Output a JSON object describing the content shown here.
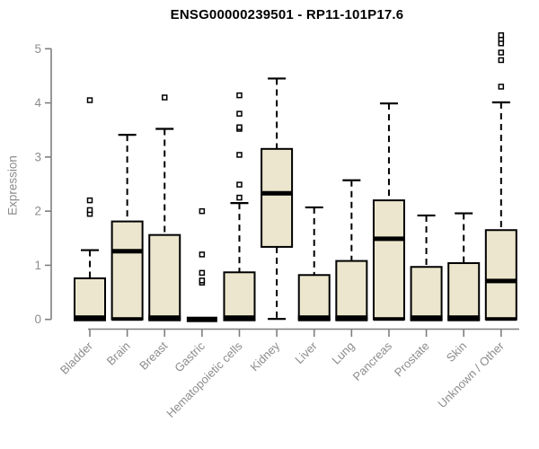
{
  "chart_data": {
    "type": "boxplot",
    "title": "ENSG00000239501 - RP11-101P17.6",
    "ylabel": "Expression",
    "xlabel": "",
    "ylim": [
      0,
      5.3
    ],
    "yticks": [
      0,
      1,
      2,
      3,
      4,
      5
    ],
    "grid": false,
    "legend": "none",
    "categories": [
      "Bladder",
      "Brain",
      "Breast",
      "Gastric",
      "Hematopoietic cells",
      "Kidney",
      "Liver",
      "Lung",
      "Pancreas",
      "Prostate",
      "Skin",
      "Unknown / Other"
    ],
    "boxes": [
      {
        "category": "Bladder",
        "q1": 0,
        "median": 0,
        "q3": 0.76,
        "whisker_low": 0,
        "whisker_high": 1.28,
        "outliers": [
          1.95,
          2.02,
          2.2,
          4.05
        ]
      },
      {
        "category": "Brain",
        "q1": 0,
        "median": 1.26,
        "q3": 1.81,
        "whisker_low": 0,
        "whisker_high": 3.41,
        "outliers": []
      },
      {
        "category": "Breast",
        "q1": 0,
        "median": 0,
        "q3": 1.56,
        "whisker_low": 0,
        "whisker_high": 3.52,
        "outliers": [
          4.1
        ]
      },
      {
        "category": "Gastric",
        "q1": 0,
        "median": 0,
        "q3": 0.02,
        "whisker_low": 0,
        "whisker_high": 0.02,
        "outliers": [
          0.68,
          0.72,
          0.86,
          1.2,
          2.0
        ]
      },
      {
        "category": "Hematopoietic cells",
        "q1": 0,
        "median": 0,
        "q3": 0.87,
        "whisker_low": 0,
        "whisker_high": 2.15,
        "outliers": [
          2.25,
          2.49,
          3.04,
          3.52,
          3.55,
          3.8,
          4.14
        ]
      },
      {
        "category": "Kidney",
        "q1": 1.34,
        "median": 2.33,
        "q3": 3.15,
        "whisker_low": 0.01,
        "whisker_high": 4.45,
        "outliers": []
      },
      {
        "category": "Liver",
        "q1": 0,
        "median": 0,
        "q3": 0.82,
        "whisker_low": 0,
        "whisker_high": 2.07,
        "outliers": []
      },
      {
        "category": "Lung",
        "q1": 0,
        "median": 0,
        "q3": 1.08,
        "whisker_low": 0,
        "whisker_high": 2.57,
        "outliers": []
      },
      {
        "category": "Pancreas",
        "q1": 0,
        "median": 1.49,
        "q3": 2.2,
        "whisker_low": 0,
        "whisker_high": 3.99,
        "outliers": []
      },
      {
        "category": "Prostate",
        "q1": 0,
        "median": 0,
        "q3": 0.97,
        "whisker_low": 0,
        "whisker_high": 1.92,
        "outliers": []
      },
      {
        "category": "Skin",
        "q1": 0,
        "median": 0,
        "q3": 1.04,
        "whisker_low": 0,
        "whisker_high": 1.96,
        "outliers": []
      },
      {
        "category": "Unknown / Other",
        "q1": 0,
        "median": 0.71,
        "q3": 1.65,
        "whisker_low": 0,
        "whisker_high": 4.01,
        "outliers": [
          4.3,
          4.79,
          4.93,
          5.1,
          5.18,
          5.25
        ]
      }
    ],
    "colors": {
      "box_fill": "#EBE6CD",
      "box_stroke": "#000000",
      "median": "#000000",
      "axis": "#7f7f7f",
      "tick_label": "#8c8c8c",
      "title": "#000000",
      "background": "#ffffff"
    }
  }
}
